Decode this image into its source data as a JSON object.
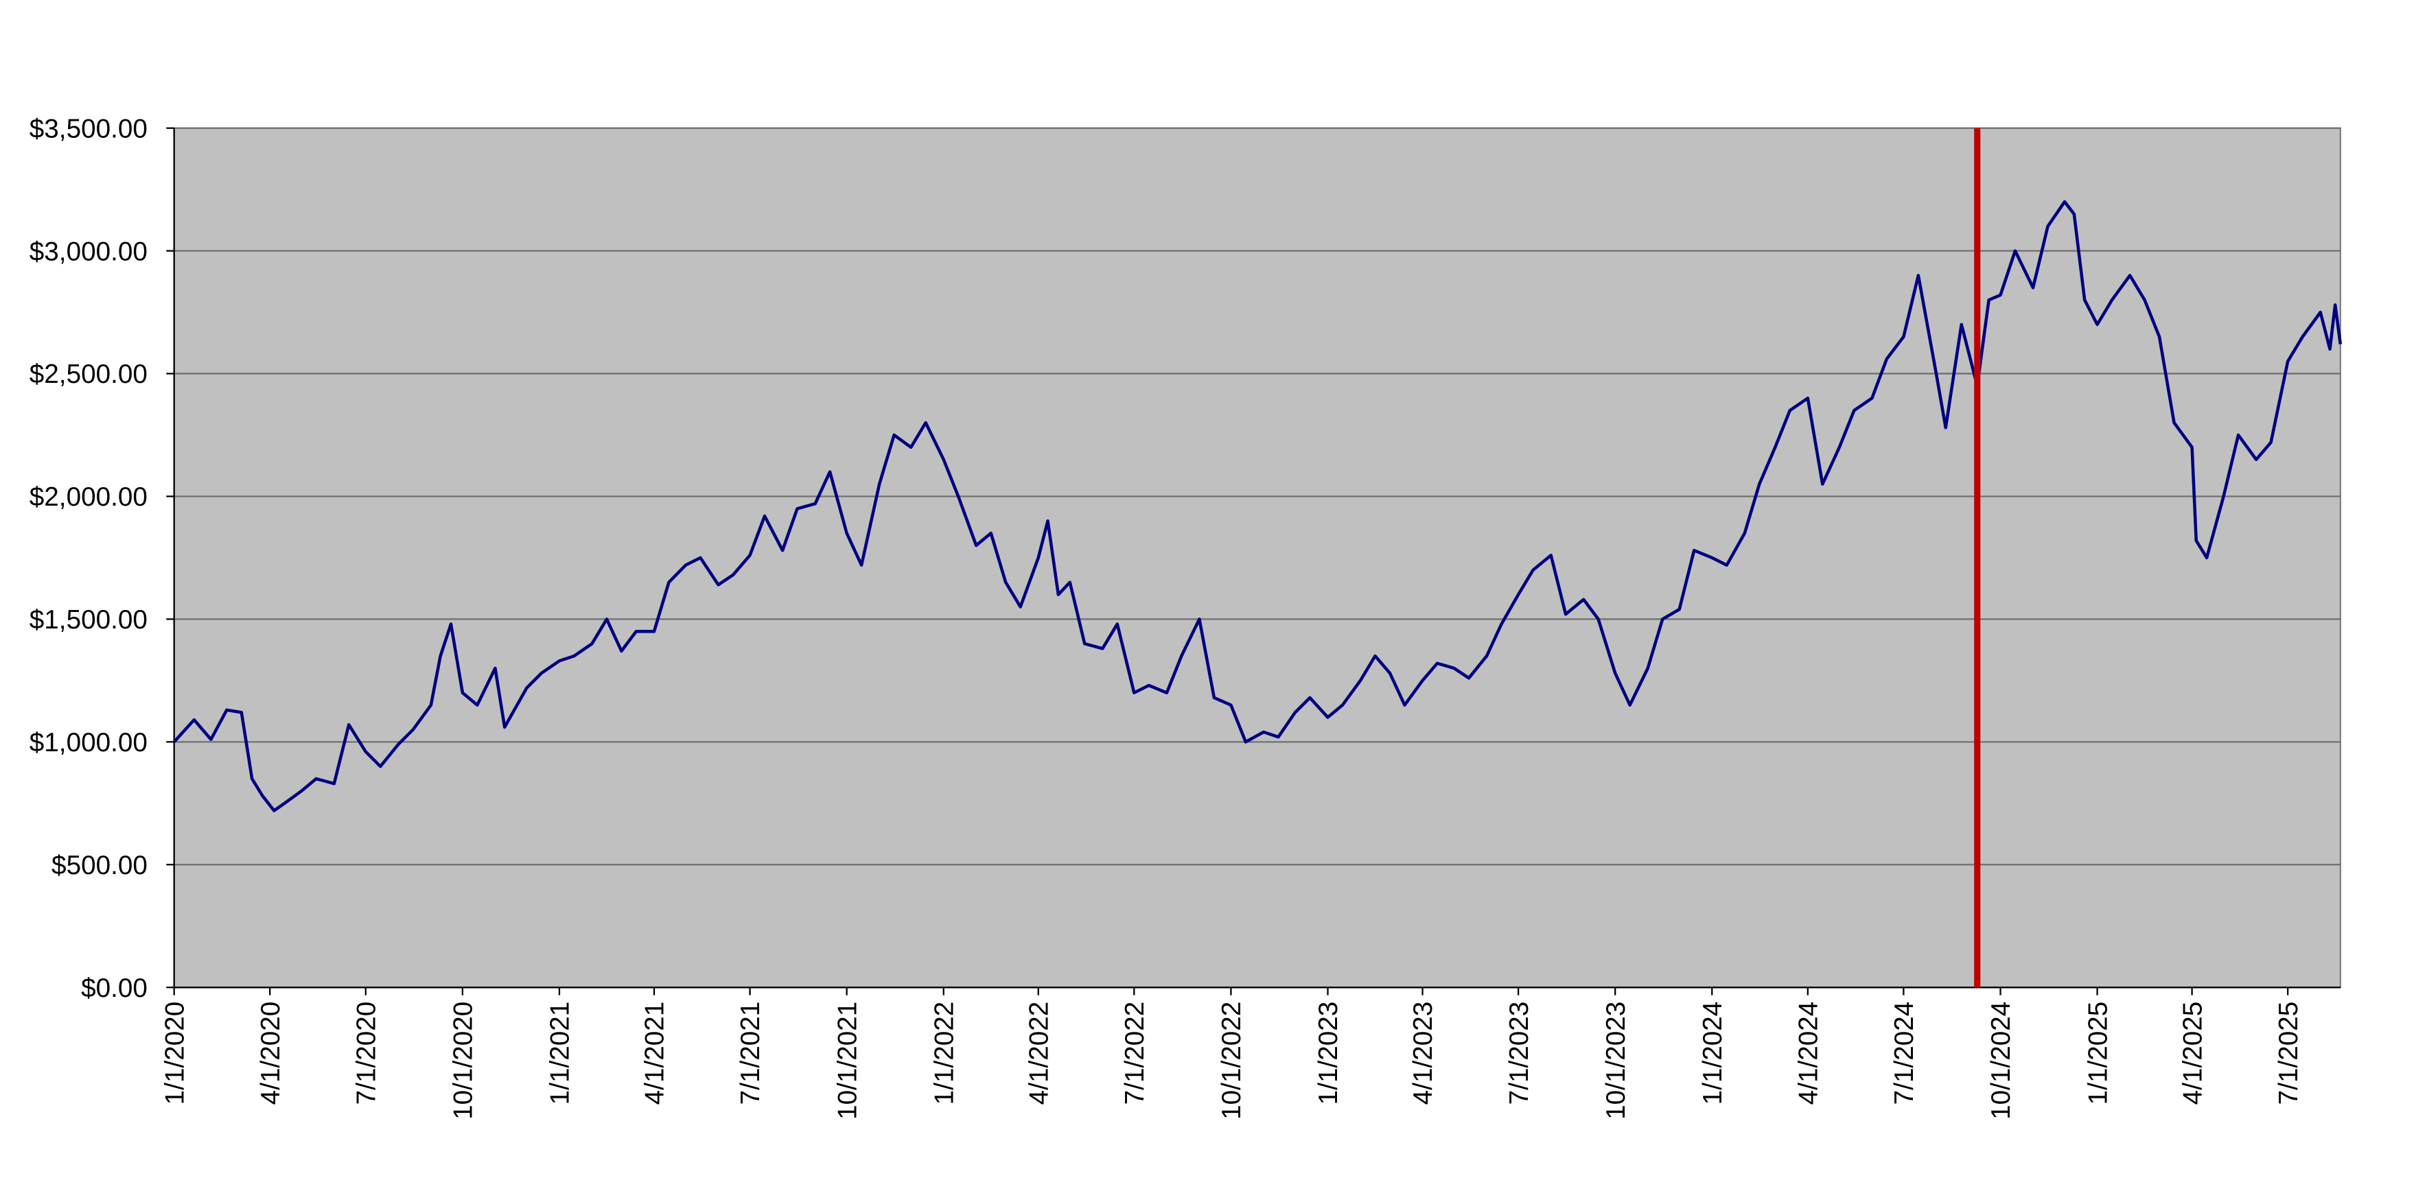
{
  "chart_data": {
    "type": "line",
    "x": [
      "1/1/2020",
      "1/20/2020",
      "2/5/2020",
      "2/20/2020",
      "3/5/2020",
      "3/15/2020",
      "3/25/2020",
      "4/5/2020",
      "4/15/2020",
      "5/1/2020",
      "5/15/2020",
      "6/1/2020",
      "6/15/2020",
      "7/1/2020",
      "7/15/2020",
      "8/1/2020",
      "8/15/2020",
      "9/1/2020",
      "9/10/2020",
      "9/20/2020",
      "10/1/2020",
      "10/15/2020",
      "11/1/2020",
      "11/10/2020",
      "12/1/2020",
      "12/15/2020",
      "1/1/2021",
      "1/15/2021",
      "2/1/2021",
      "2/15/2021",
      "3/1/2021",
      "3/15/2021",
      "4/1/2021",
      "4/15/2021",
      "5/1/2021",
      "5/15/2021",
      "6/1/2021",
      "6/15/2021",
      "7/1/2021",
      "7/15/2021",
      "8/1/2021",
      "8/15/2021",
      "9/1/2021",
      "9/15/2021",
      "10/1/2021",
      "10/15/2021",
      "11/1/2021",
      "11/15/2021",
      "12/1/2021",
      "12/15/2021",
      "1/1/2022",
      "1/15/2022",
      "2/1/2022",
      "2/15/2022",
      "3/1/2022",
      "3/15/2022",
      "4/1/2022",
      "4/10/2022",
      "4/20/2022",
      "5/1/2022",
      "5/15/2022",
      "6/1/2022",
      "6/15/2022",
      "7/1/2022",
      "7/15/2022",
      "8/1/2022",
      "8/15/2022",
      "9/1/2022",
      "9/15/2022",
      "10/1/2022",
      "10/15/2022",
      "11/1/2022",
      "11/15/2022",
      "12/1/2022",
      "12/15/2022",
      "1/1/2023",
      "1/15/2023",
      "2/1/2023",
      "2/15/2023",
      "3/1/2023",
      "3/15/2023",
      "4/1/2023",
      "4/15/2023",
      "5/1/2023",
      "5/15/2023",
      "6/1/2023",
      "6/15/2023",
      "7/1/2023",
      "7/15/2023",
      "8/1/2023",
      "8/15/2023",
      "9/1/2023",
      "9/15/2023",
      "10/1/2023",
      "10/15/2023",
      "11/1/2023",
      "11/15/2023",
      "12/1/2023",
      "12/15/2023",
      "1/1/2024",
      "1/15/2024",
      "2/1/2024",
      "2/15/2024",
      "3/1/2024",
      "3/15/2024",
      "4/1/2024",
      "4/15/2024",
      "5/1/2024",
      "5/15/2024",
      "6/1/2024",
      "6/15/2024",
      "7/1/2024",
      "7/15/2024",
      "8/1/2024",
      "8/10/2024",
      "8/25/2024",
      "9/9/2024",
      "9/20/2024",
      "10/1/2024",
      "10/15/2024",
      "11/1/2024",
      "11/15/2024",
      "12/1/2024",
      "12/10/2024",
      "12/20/2024",
      "1/1/2025",
      "1/15/2025",
      "2/1/2025",
      "2/15/2025",
      "3/1/2025",
      "3/15/2025",
      "4/1/2025",
      "4/5/2025",
      "4/15/2025",
      "5/1/2025",
      "5/15/2025",
      "6/1/2025",
      "6/15/2025",
      "7/1/2025",
      "7/15/2025",
      "8/1/2025",
      "8/10/2025",
      "8/15/2025",
      "8/20/2025"
    ],
    "series": [
      {
        "color": "#000080",
        "values": [
          1000,
          1090,
          1010,
          1130,
          1120,
          850,
          780,
          720,
          750,
          800,
          850,
          830,
          1070,
          960,
          900,
          990,
          1050,
          1150,
          1350,
          1480,
          1200,
          1150,
          1300,
          1060,
          1220,
          1280,
          1330,
          1350,
          1400,
          1500,
          1370,
          1450,
          1450,
          1650,
          1720,
          1750,
          1640,
          1680,
          1760,
          1920,
          1780,
          1950,
          1970,
          2100,
          1850,
          1720,
          2050,
          2250,
          2200,
          2300,
          2150,
          2000,
          1800,
          1850,
          1650,
          1550,
          1750,
          1900,
          1600,
          1650,
          1400,
          1380,
          1480,
          1200,
          1230,
          1200,
          1350,
          1500,
          1180,
          1150,
          1000,
          1040,
          1020,
          1120,
          1180,
          1100,
          1150,
          1250,
          1350,
          1280,
          1150,
          1250,
          1320,
          1300,
          1260,
          1350,
          1480,
          1600,
          1700,
          1760,
          1520,
          1580,
          1500,
          1280,
          1150,
          1300,
          1500,
          1540,
          1780,
          1750,
          1720,
          1850,
          2050,
          2200,
          2350,
          2400,
          2050,
          2200,
          2350,
          2400,
          2560,
          2650,
          2900,
          2500,
          2280,
          2700,
          2450,
          2800,
          2820,
          3000,
          2850,
          3100,
          3200,
          3150,
          2800,
          2700,
          2800,
          2900,
          2800,
          2650,
          2300,
          2200,
          1820,
          1750,
          2000,
          2250,
          2150,
          2220,
          2550,
          2650,
          2750,
          2600,
          2780,
          2620
        ]
      }
    ],
    "xlim": [
      "1/1/2020",
      "8/20/2025"
    ],
    "xticks": [
      "1/1/2020",
      "4/1/2020",
      "7/1/2020",
      "10/1/2020",
      "1/1/2021",
      "4/1/2021",
      "7/1/2021",
      "10/1/2021",
      "1/1/2022",
      "4/1/2022",
      "7/1/2022",
      "10/1/2022",
      "1/1/2023",
      "4/1/2023",
      "7/1/2023",
      "10/1/2023",
      "1/1/2024",
      "4/1/2024",
      "7/1/2024",
      "10/1/2024",
      "1/1/2025",
      "4/1/2025",
      "7/1/2025"
    ],
    "ylim": [
      0,
      3500
    ],
    "yticks": [
      {
        "value": 0,
        "label": "$0.00"
      },
      {
        "value": 500,
        "label": "$500.00"
      },
      {
        "value": 1000,
        "label": "$1,000.00"
      },
      {
        "value": 1500,
        "label": "$1,500.00"
      },
      {
        "value": 2000,
        "label": "$2,000.00"
      },
      {
        "value": 2500,
        "label": "$2,500.00"
      },
      {
        "value": 3000,
        "label": "$3,000.00"
      },
      {
        "value": 3500,
        "label": "$3,500.00"
      }
    ],
    "grid": true,
    "plot_background": "#c0c0c0",
    "marker_x": "9/9/2024",
    "marker_color": "#c00000"
  }
}
